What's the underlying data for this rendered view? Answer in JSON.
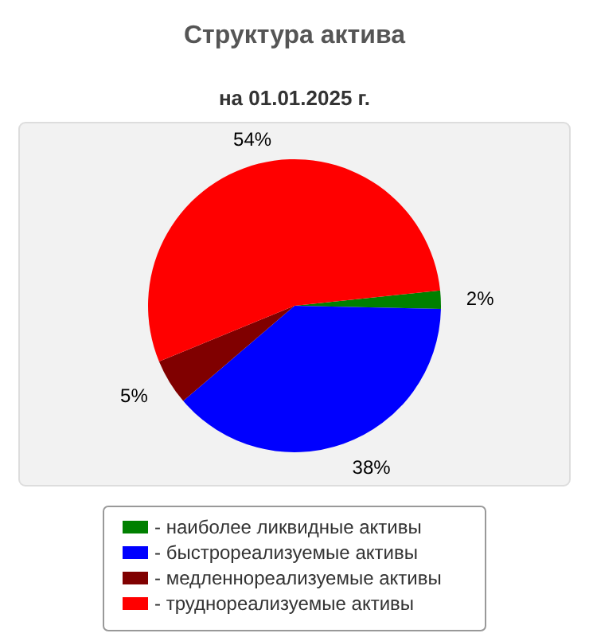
{
  "chart_data": {
    "type": "pie",
    "title": "Структура актива",
    "subtitle": "на 01.01.2025 г.",
    "categories": [
      "- наиболее ликвидные активы",
      "- быстрореализуемые активы",
      "- медленнореализуемые активы",
      "- труднореализуемые активы"
    ],
    "values": [
      2,
      38,
      5,
      54
    ],
    "colors": [
      "#008000",
      "#0000ff",
      "#800000",
      "#ff0000"
    ],
    "value_labels": [
      "2%",
      "38%",
      "5%",
      "54%"
    ],
    "legend": "bottom"
  }
}
